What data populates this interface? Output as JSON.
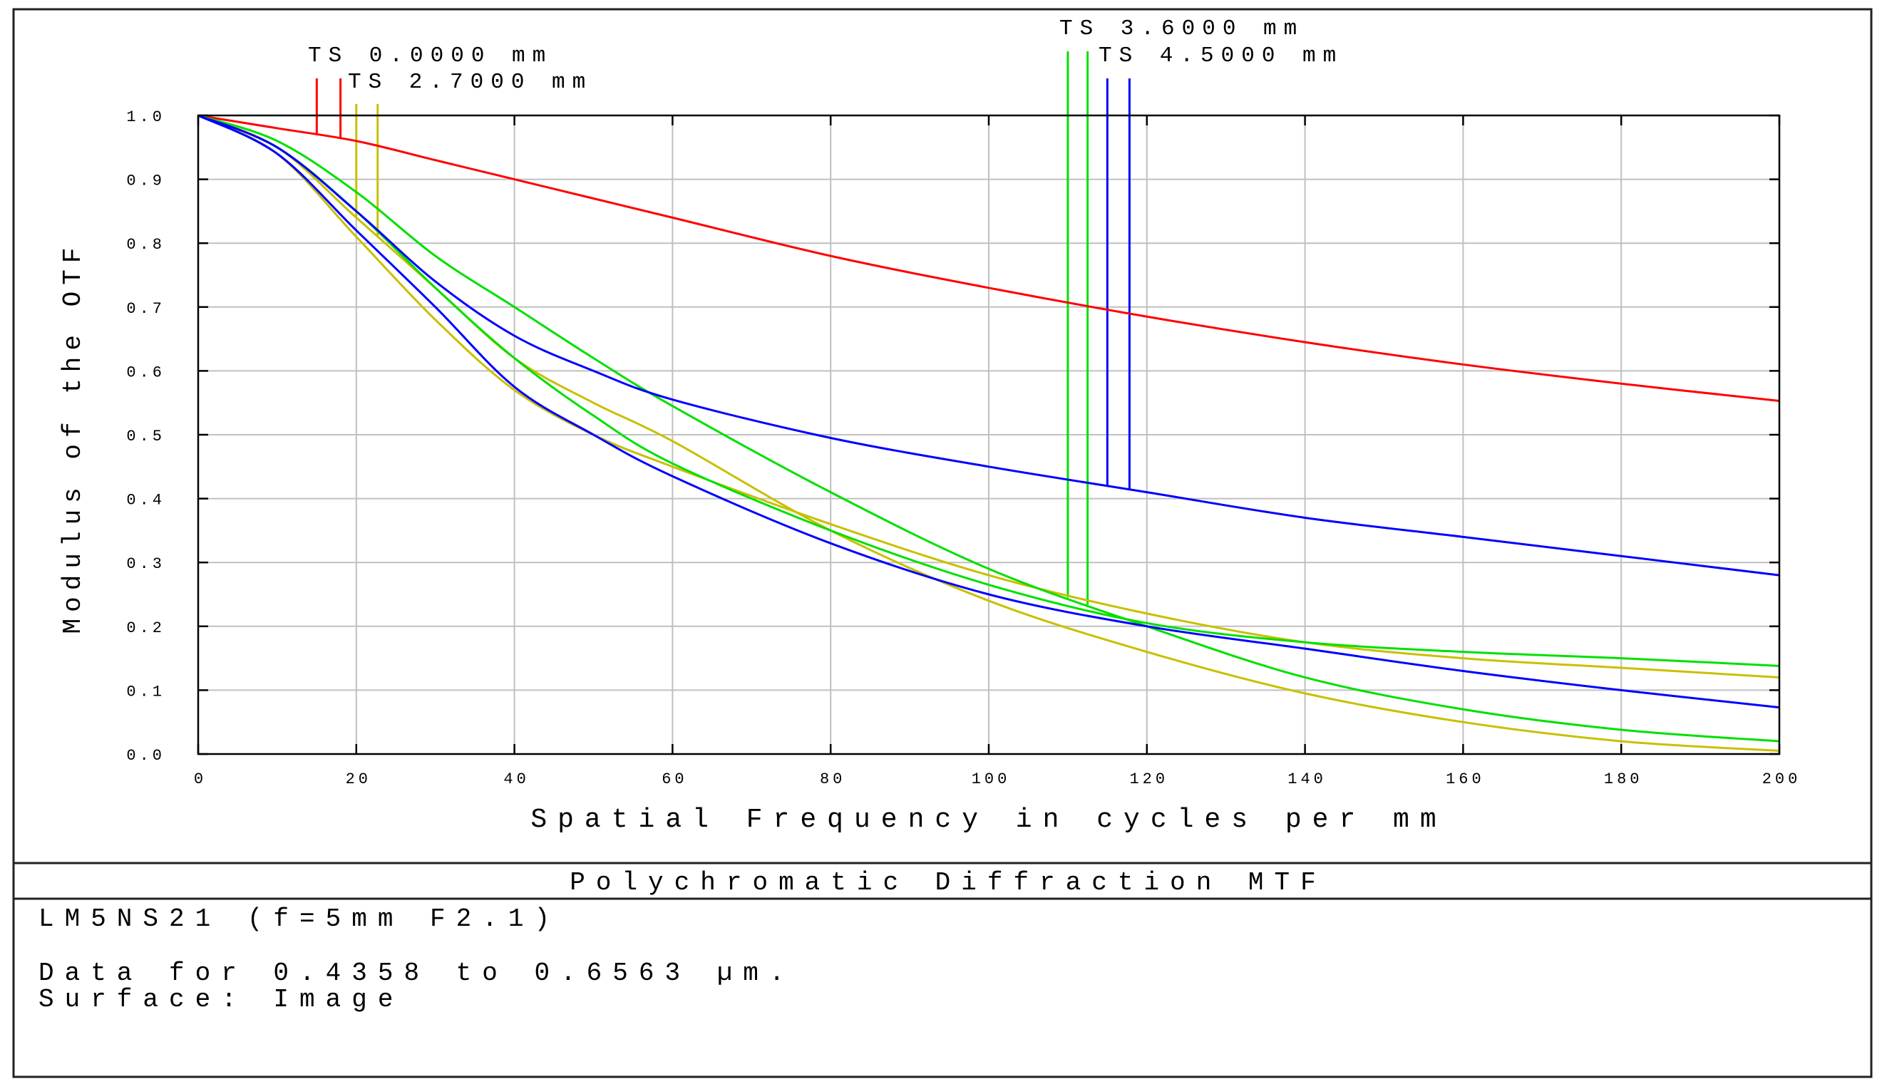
{
  "chart_data": {
    "type": "line",
    "title": "Polychromatic Diffraction MTF",
    "xlabel": "Spatial Frequency in cycles per mm",
    "ylabel": "Modulus of the OTF",
    "xlim": [
      0,
      200
    ],
    "ylim": [
      0,
      1
    ],
    "x_ticks": [
      "0",
      "20",
      "40",
      "60",
      "80",
      "100",
      "120",
      "140",
      "160",
      "180",
      "200"
    ],
    "y_ticks": [
      "0.0",
      "0.1",
      "0.2",
      "0.3",
      "0.4",
      "0.5",
      "0.6",
      "0.7",
      "0.8",
      "0.9",
      "1.0"
    ],
    "grid": true,
    "legend_placement": "top",
    "legend": [
      {
        "label": "TS 0.0000 mm",
        "color": "#ff0000",
        "markers_x": [
          15,
          18
        ]
      },
      {
        "label": "TS 2.7000 mm",
        "color": "#c8c000",
        "markers_x": [
          20,
          22.7
        ]
      },
      {
        "label": "TS 3.6000 mm",
        "color": "#00e000",
        "markers_x": [
          110,
          112.5
        ]
      },
      {
        "label": "TS 4.5000 mm",
        "color": "#0000ff",
        "markers_x": [
          115,
          117.8
        ]
      }
    ],
    "x": [
      0,
      10,
      20,
      30,
      40,
      50,
      60,
      80,
      100,
      120,
      140,
      160,
      180,
      200
    ],
    "series": [
      {
        "field": "TS 0.0000 mm",
        "color": "#ff0000",
        "values": [
          1.0,
          0.98,
          0.96,
          0.93,
          0.9,
          0.87,
          0.84,
          0.78,
          0.73,
          0.685,
          0.645,
          0.61,
          0.58,
          0.553
        ]
      },
      {
        "field": "TS 2.7000 mm",
        "color": "#c8c000",
        "values": [
          1.0,
          0.94,
          0.81,
          0.68,
          0.57,
          0.5,
          0.45,
          0.36,
          0.28,
          0.22,
          0.175,
          0.15,
          0.135,
          0.12
        ]
      },
      {
        "field": "TS 2.7000 mm",
        "color": "#c8c000",
        "values": [
          1.0,
          0.95,
          0.84,
          0.73,
          0.62,
          0.55,
          0.49,
          0.35,
          0.24,
          0.16,
          0.095,
          0.05,
          0.02,
          0.005
        ]
      },
      {
        "field": "TS 3.6000 mm",
        "color": "#00e000",
        "values": [
          1.0,
          0.96,
          0.88,
          0.78,
          0.7,
          0.62,
          0.545,
          0.41,
          0.29,
          0.2,
          0.12,
          0.07,
          0.038,
          0.02
        ]
      },
      {
        "field": "TS 3.6000 mm",
        "color": "#00e000",
        "values": [
          1.0,
          0.95,
          0.85,
          0.73,
          0.62,
          0.53,
          0.455,
          0.35,
          0.265,
          0.205,
          0.175,
          0.16,
          0.15,
          0.138
        ]
      },
      {
        "field": "TS 4.5000 mm",
        "color": "#0000ff",
        "values": [
          1.0,
          0.95,
          0.85,
          0.74,
          0.655,
          0.6,
          0.555,
          0.495,
          0.45,
          0.41,
          0.37,
          0.34,
          0.31,
          0.28
        ]
      },
      {
        "field": "TS 4.5000 mm",
        "color": "#0000ff",
        "values": [
          1.0,
          0.94,
          0.82,
          0.7,
          0.575,
          0.5,
          0.435,
          0.33,
          0.25,
          0.2,
          0.165,
          0.13,
          0.1,
          0.073
        ]
      }
    ]
  },
  "info": {
    "lens": "LM5NS21 (f=5mm F2.1)",
    "data_range": "Data for 0.4358 to 0.6563 µm.",
    "surface": "Surface: Image"
  }
}
